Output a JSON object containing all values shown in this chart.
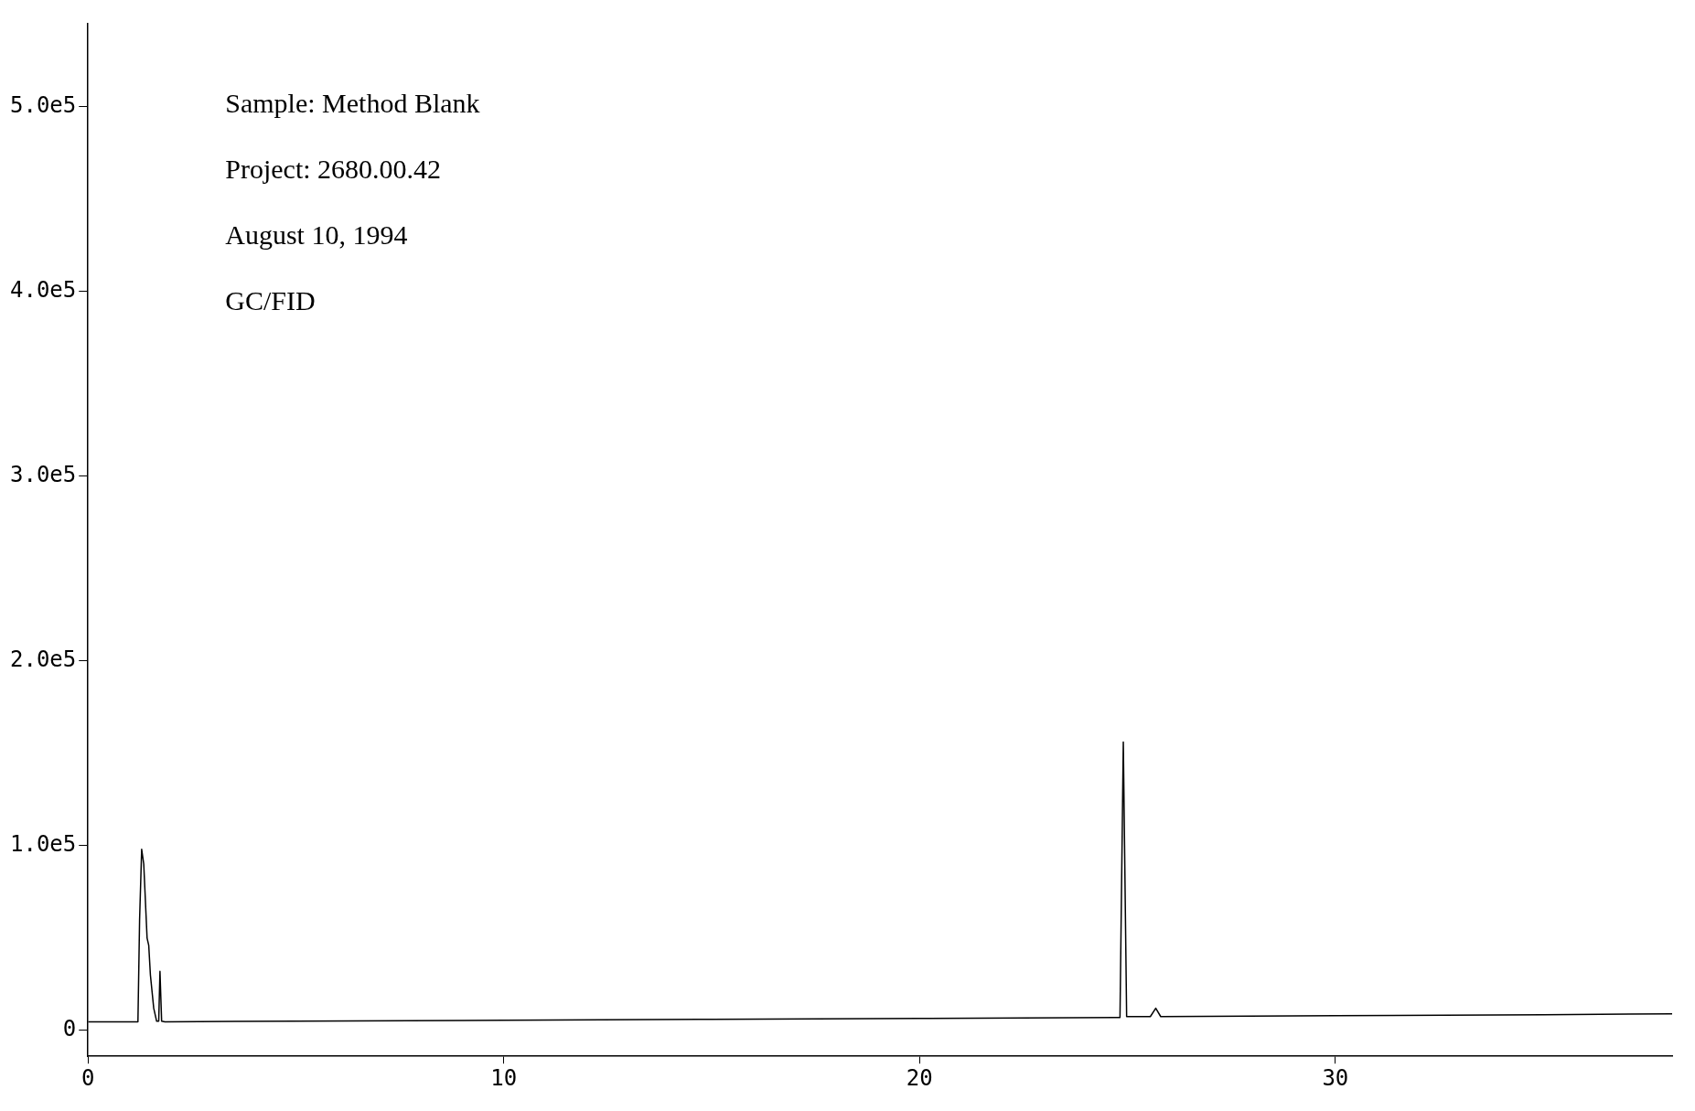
{
  "chart_data": {
    "type": "line",
    "annotations": [
      "Sample: Method Blank",
      "Project: 2680.00.42",
      "August 10, 1994",
      "GC/FID"
    ],
    "x": [
      0,
      1.2,
      1.24,
      1.29,
      1.34,
      1.42,
      1.46,
      1.5,
      1.58,
      1.65,
      1.7,
      1.73,
      1.77,
      1.85,
      5,
      10,
      15,
      20,
      24.7,
      24.82,
      24.9,
      24.98,
      25.1,
      25.55,
      25.68,
      25.8,
      30,
      35,
      38.1
    ],
    "series": [
      {
        "color": "#000000",
        "values": [
          4600,
          4600,
          60000,
          98000,
          90000,
          50000,
          46000,
          30000,
          12000,
          5000,
          5000,
          32000,
          5000,
          4700,
          5000,
          5500,
          6000,
          6500,
          7000,
          7000,
          156000,
          7500,
          7500,
          7500,
          12000,
          7500,
          8000,
          8500,
          9000
        ]
      }
    ],
    "xlim": [
      0,
      38.1
    ],
    "xticks": [
      0,
      10,
      20,
      30
    ],
    "ylim": [
      -14000,
      545000
    ],
    "yticks": [
      0,
      {
        "value": 100000,
        "label": "1.0e5"
      },
      {
        "value": 200000,
        "label": "2.0e5"
      },
      {
        "value": 300000,
        "label": "3.0e5"
      },
      {
        "value": 400000,
        "label": "4.0e5"
      },
      {
        "value": 500000,
        "label": "5.0e5"
      }
    ],
    "grid": false,
    "legend": false,
    "marker": "none",
    "line_style": "solid"
  }
}
